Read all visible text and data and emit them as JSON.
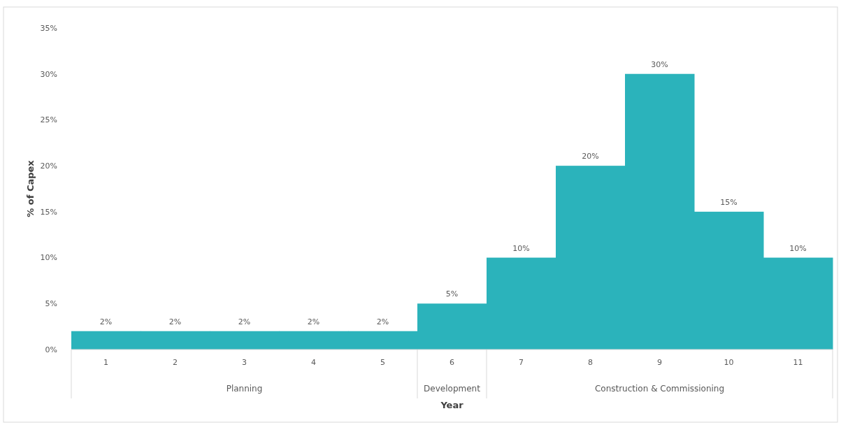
{
  "chart_data": {
    "type": "bar",
    "ylabel": "% of Capex",
    "xlabel": "Year",
    "categories": [
      "1",
      "2",
      "3",
      "4",
      "5",
      "6",
      "7",
      "8",
      "9",
      "10",
      "11"
    ],
    "values": [
      2,
      2,
      2,
      2,
      2,
      5,
      10,
      20,
      30,
      15,
      10
    ],
    "value_labels": [
      "2%",
      "2%",
      "2%",
      "2%",
      "2%",
      "5%",
      "10%",
      "20%",
      "30%",
      "15%",
      "10%"
    ],
    "color": "#2bb3bb",
    "ylim": [
      0,
      35
    ],
    "yticks": [
      {
        "value": 0,
        "label": "0%"
      },
      {
        "value": 5,
        "label": "5%"
      },
      {
        "value": 10,
        "label": "10%"
      },
      {
        "value": 15,
        "label": "15%"
      },
      {
        "value": 20,
        "label": "20%"
      },
      {
        "value": 25,
        "label": "25%"
      },
      {
        "value": 30,
        "label": "30%"
      },
      {
        "value": 35,
        "label": "35%"
      }
    ],
    "annotations": [
      "Planning",
      "Development",
      "Construction & Commissioning"
    ]
  }
}
